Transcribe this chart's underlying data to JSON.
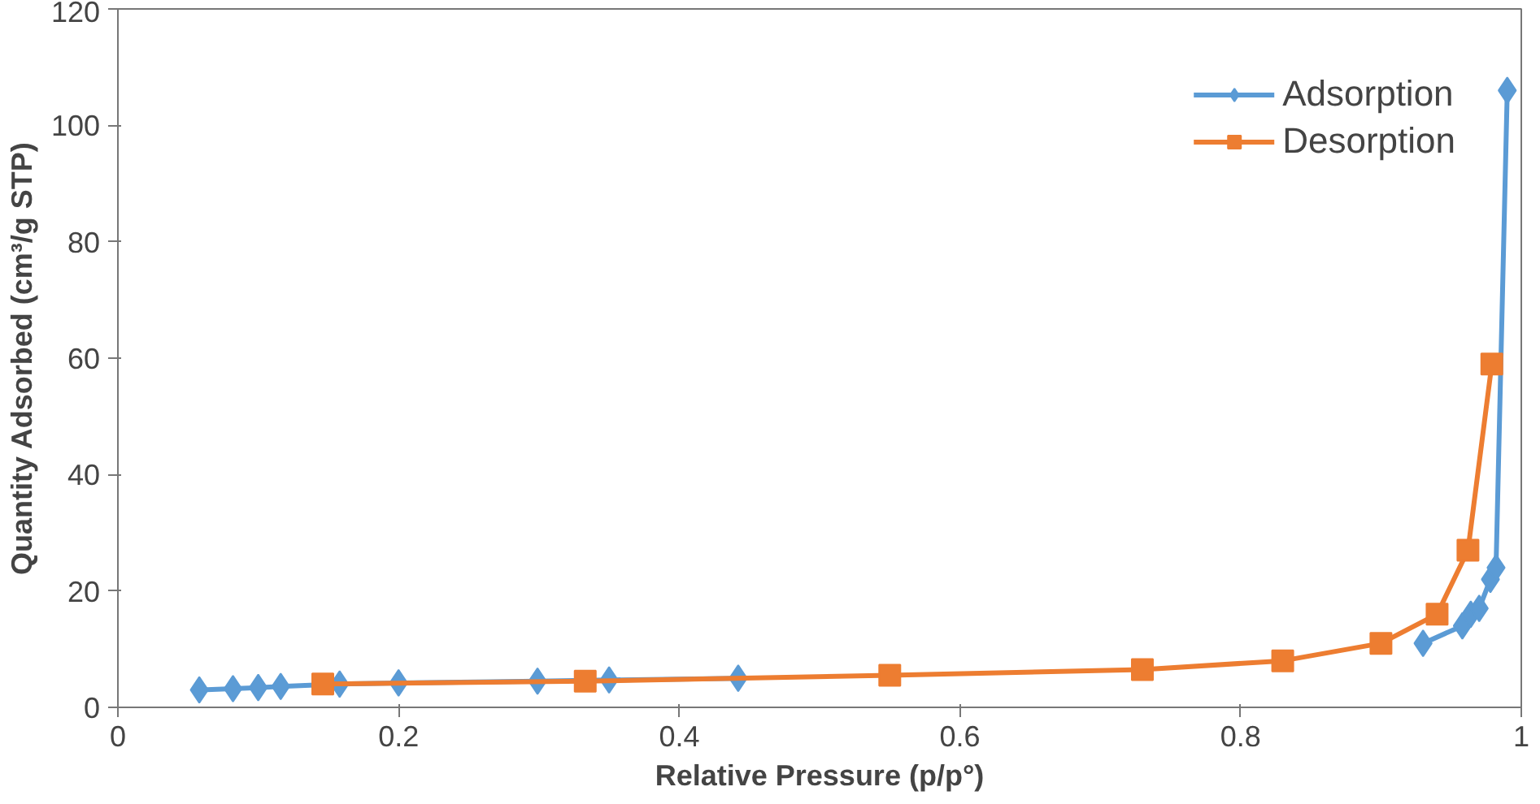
{
  "chart_data": {
    "type": "line",
    "xlabel": "Relative Pressure (p/p°)",
    "ylabel": "Quantity Adsorbed (cm³/g STP)",
    "xlim": [
      0,
      1
    ],
    "ylim": [
      0,
      120
    ],
    "xticks": [
      0,
      0.2,
      0.4,
      0.6,
      0.8,
      1
    ],
    "yticks": [
      0,
      20,
      40,
      60,
      80,
      100,
      120
    ],
    "grid": false,
    "legend": "top right",
    "line_style": "solid",
    "series": [
      {
        "name": "Adsorption",
        "color": "#5b9bd5",
        "marker": "diamond",
        "x": [
          0.058,
          0.082,
          0.1,
          0.116,
          0.158,
          0.2,
          0.299,
          0.35,
          0.442,
          0.55,
          0.73,
          0.83,
          0.9,
          0.93,
          0.958,
          0.964,
          0.97,
          0.978,
          0.982,
          0.99
        ],
        "values": [
          3,
          3.2,
          3.4,
          3.6,
          4,
          4.2,
          4.5,
          4.7,
          5,
          null,
          null,
          null,
          null,
          11,
          14,
          16,
          17,
          22,
          24,
          106
        ]
      },
      {
        "name": "Desorption",
        "color": "#ed7d31",
        "marker": "square",
        "x": [
          0.146,
          0.333,
          0.55,
          0.73,
          0.83,
          0.9,
          0.94,
          0.962,
          0.979
        ],
        "values": [
          4,
          4.5,
          5.5,
          6.5,
          8,
          11,
          16,
          27,
          59
        ]
      }
    ]
  }
}
